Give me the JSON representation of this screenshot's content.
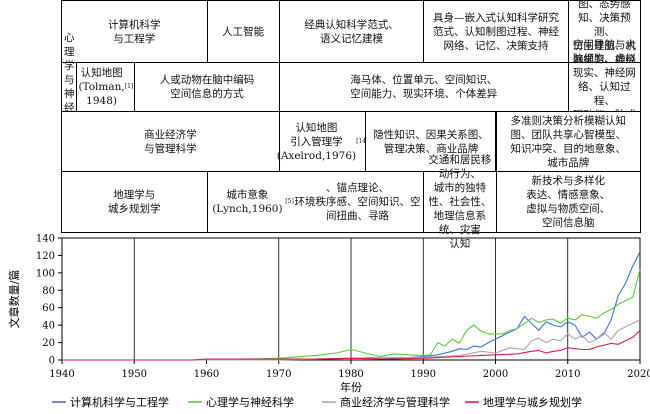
{
  "timeline_table": {
    "rows": [
      {
        "cells": [
          {
            "text": "计算机科学\n与工程学",
            "span": [
              1940,
              1960
            ]
          },
          {
            "text": "人工智能",
            "span": [
              1960,
              1970
            ]
          },
          {
            "text": "经典认知科学范式、\n语义记忆建模",
            "span": [
              1970,
              1990
            ]
          },
          {
            "text": "具身—嵌入式认知科学研究\n范式、认知制图过程、神经\n网络、记忆、决策支持",
            "span": [
              1990,
              2010
            ]
          },
          {
            "text": "生成论研究范式、模糊认知\n图、态势感知、决策预测、\n仿生建图、机器学习、神经\n地图、认知建模与优化",
            "span": [
              2010,
              2020
            ]
          }
        ]
      },
      {
        "cells": [
          {
            "text": "心理学与\n神经科学",
            "span": [
              1940,
              1942
            ]
          },
          {
            "text": "认知地图\n(Tolman,\n1948)",
            "ref": "[1]",
            "span": [
              1942,
              1950
            ]
          },
          {
            "text": "人或动物在脑中编码\n空间信息的方式",
            "span": [
              1950,
              1970
            ]
          },
          {
            "text": "海马体、位置单元、空间知识、\n空间能力、现实环境、个体差异",
            "span": [
              1970,
              2010
            ]
          },
          {
            "text": "空间导航与大脑细胞、虚拟\n现实、神经网络、认知过程、\n眼动仪、脑成像",
            "span": [
              2010,
              2020
            ]
          }
        ]
      },
      {
        "cells": [
          {
            "text": "商业经济学\n与管理科学",
            "span": [
              1940,
              1970
            ]
          },
          {
            "text": "认知地图\n引入管理学\n(Axelrod,1976)",
            "ref": "[14]",
            "span": [
              1970,
              1982
            ]
          },
          {
            "text": "隐性知识、因果关系图、\n管理决策、商业品牌",
            "span": [
              1982,
              2000
            ]
          },
          {
            "text": "多准则决策分析模糊认知\n图、团队共享心智模型、\n知识冲突、目的地意象、\n城市品牌",
            "span": [
              2000,
              2020
            ]
          }
        ]
      },
      {
        "cells": [
          {
            "text": "地理学与\n城乡规划学",
            "span": [
              1940,
              1960
            ]
          },
          {
            "text": "城市意象(Lynch,1960)",
            "ref": "[5]",
            "text2": "、锚点理论、\n环境秩序感、空间知识、空间扭曲、寻路",
            "span": [
              1960,
              1990
            ]
          },
          {
            "text": "交通和居民移动行为、\n城市的独特性、社会性、\n地理信息系统、灾害\n认知",
            "span": [
              1990,
              2000
            ]
          },
          {
            "text": "新技术与多样化\n表达、情感意象、\n虚拟与物质空间、\n空间信息脑",
            "span": [
              2000,
              2020
            ]
          }
        ]
      }
    ]
  },
  "chart_data": {
    "type": "line",
    "xlabel": "年份",
    "ylabel": "文章数量/篇",
    "xlim": [
      1940,
      2020
    ],
    "ylim": [
      0,
      140
    ],
    "xticks": [
      1940,
      1950,
      1960,
      1970,
      1980,
      1990,
      2000,
      2010,
      2020
    ],
    "yticks": [
      0,
      20,
      40,
      60,
      80,
      100,
      120,
      140
    ],
    "vlines": [
      1950,
      1970,
      1980,
      1990,
      2000,
      2010
    ],
    "legend_position": "bottom",
    "series": [
      {
        "name": "计算机科学与工程学",
        "color": "#3a73d6",
        "x": [
          1940,
          1948,
          1956,
          1962,
          1970,
          1975,
          1980,
          1984,
          1986,
          1988,
          1990,
          1992,
          1994,
          1995,
          1996,
          1997,
          1998,
          1999,
          2000,
          2001,
          2002,
          2003,
          2004,
          2005,
          2006,
          2007,
          2008,
          2009,
          2010,
          2011,
          2012,
          2013,
          2014,
          2015,
          2016,
          2017,
          2018,
          2019,
          2020
        ],
        "y": [
          0,
          0,
          0,
          0,
          1,
          1,
          2,
          3,
          2,
          3,
          4,
          6,
          10,
          13,
          12,
          16,
          15,
          20,
          24,
          28,
          32,
          36,
          50,
          42,
          34,
          44,
          40,
          38,
          44,
          40,
          26,
          32,
          24,
          30,
          46,
          74,
          88,
          108,
          124
        ]
      },
      {
        "name": "心理学与神经科学",
        "color": "#57c83a",
        "x": [
          1940,
          1948,
          1960,
          1970,
          1975,
          1978,
          1980,
          1982,
          1984,
          1986,
          1988,
          1990,
          1991,
          1992,
          1993,
          1994,
          1995,
          1996,
          1997,
          1998,
          1999,
          2000,
          2001,
          2002,
          2003,
          2004,
          2005,
          2006,
          2007,
          2008,
          2009,
          2010,
          2011,
          2012,
          2013,
          2014,
          2015,
          2016,
          2017,
          2018,
          2019,
          2020
        ],
        "y": [
          0,
          0,
          0,
          2,
          5,
          8,
          12,
          8,
          4,
          7,
          6,
          5,
          6,
          20,
          16,
          24,
          19,
          34,
          40,
          33,
          30,
          30,
          30,
          34,
          36,
          42,
          48,
          43,
          46,
          47,
          42,
          48,
          46,
          52,
          50,
          48,
          54,
          58,
          64,
          68,
          72,
          104
        ]
      },
      {
        "name": "商业经济学与管理科学",
        "color": "#a9a9a9",
        "x": [
          1940,
          1960,
          1970,
          1976,
          1980,
          1985,
          1990,
          1995,
          1998,
          2000,
          2002,
          2004,
          2005,
          2006,
          2007,
          2008,
          2009,
          2010,
          2011,
          2012,
          2013,
          2014,
          2015,
          2016,
          2017,
          2018,
          2019,
          2020
        ],
        "y": [
          0,
          0,
          0,
          1,
          2,
          3,
          3,
          5,
          10,
          8,
          14,
          12,
          22,
          25,
          20,
          24,
          22,
          30,
          24,
          28,
          20,
          24,
          32,
          24,
          34,
          38,
          42,
          46
        ]
      },
      {
        "name": "地理学与城乡规划学",
        "color": "#d8203e",
        "x": [
          1940,
          1958,
          1960,
          1965,
          1970,
          1975,
          1980,
          1985,
          1990,
          1995,
          2000,
          2003,
          2005,
          2006,
          2007,
          2008,
          2009,
          2010,
          2011,
          2012,
          2013,
          2014,
          2015,
          2016,
          2017,
          2018,
          2019,
          2020
        ],
        "y": [
          0,
          0,
          1,
          1,
          1,
          1,
          2,
          1,
          2,
          4,
          6,
          7,
          10,
          11,
          8,
          10,
          11,
          14,
          13,
          12,
          12,
          15,
          17,
          19,
          18,
          22,
          26,
          34
        ]
      }
    ]
  }
}
